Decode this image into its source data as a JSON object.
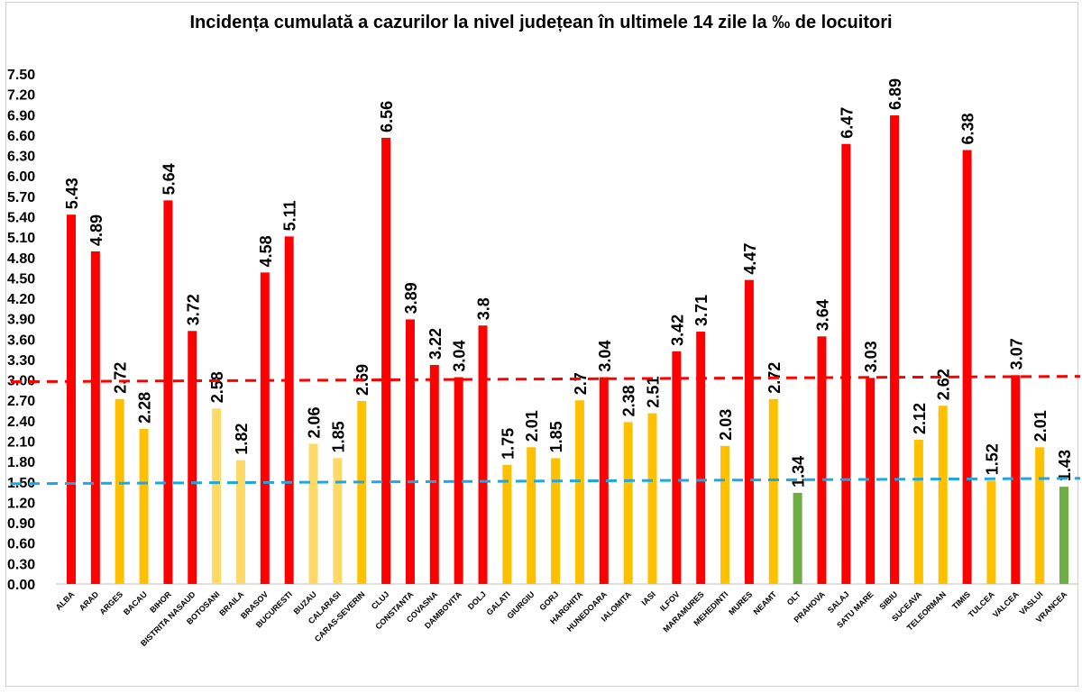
{
  "chart_data": {
    "type": "bar",
    "title": "Incidența cumulată a cazurilor la nivel județean în ultimele 14 zile la ‰ de locuitori",
    "ylim": [
      0,
      7.5
    ],
    "yticks": [
      "0.00",
      "0.30",
      "0.60",
      "0.90",
      "1.20",
      "1.50",
      "1.80",
      "2.10",
      "2.40",
      "2.70",
      "3.00",
      "3.30",
      "3.60",
      "3.90",
      "4.20",
      "4.50",
      "4.80",
      "5.10",
      "5.40",
      "5.70",
      "6.00",
      "6.30",
      "6.60",
      "6.90",
      "7.20",
      "7.50"
    ],
    "grid": false,
    "categories": [
      "ALBA",
      "ARAD",
      "ARGES",
      "BACAU",
      "BIHOR",
      "BISTRITA NASAUD",
      "BOTOSANI",
      "BRAILA",
      "BRASOV",
      "BUCURESTI",
      "BUZAU",
      "CALARASI",
      "CARAS-SEVERIN",
      "CLUJ",
      "CONSTANTA",
      "COVASNA",
      "DAMBOVITA",
      "DOLJ",
      "GALATI",
      "GIURGIU",
      "GORJ",
      "HARGHITA",
      "HUNEDOARA",
      "IALOMITA",
      "IASI",
      "ILFOV",
      "MARAMURES",
      "MEHEDINTI",
      "MURES",
      "NEAMT",
      "OLT",
      "PRAHOVA",
      "SALAJ",
      "SATU MARE",
      "SIBIU",
      "SUCEAVA",
      "TELEORMAN",
      "TIMIS",
      "TULCEA",
      "VALCEA",
      "VASLUI",
      "VRANCEA"
    ],
    "values": [
      5.43,
      4.89,
      2.72,
      2.28,
      5.64,
      3.72,
      2.58,
      1.82,
      4.58,
      5.11,
      2.06,
      1.85,
      2.69,
      6.56,
      3.89,
      3.22,
      3.04,
      3.8,
      1.75,
      2.01,
      1.85,
      2.7,
      3.04,
      2.38,
      2.51,
      3.42,
      3.71,
      2.03,
      4.47,
      2.72,
      1.34,
      3.64,
      6.47,
      3.03,
      6.89,
      2.12,
      2.62,
      6.38,
      1.52,
      3.07,
      2.01,
      1.43
    ],
    "data_labels": [
      "5.43",
      "4.89",
      "2.72",
      "2.28",
      "5.64",
      "3.72",
      "2.58",
      "1.82",
      "4.58",
      "5.11",
      "2.06",
      "1.85",
      "2.69",
      "6.56",
      "3.89",
      "3.22",
      "3.04",
      "3.8",
      "1.75",
      "2.01",
      "1.85",
      "2.7",
      "3.04",
      "2.38",
      "2.51",
      "3.42",
      "3.71",
      "2.03",
      "4.47",
      "2.72",
      "1.34",
      "3.64",
      "6.47",
      "3.03",
      "6.89",
      "2.12",
      "2.62",
      "6.38",
      "1.52",
      "3.07",
      "2.01",
      "1.43"
    ],
    "bar_colors": [
      "#FF0000",
      "#FF0000",
      "#FFC000",
      "#FFC000",
      "#FF0000",
      "#FF0000",
      "#FFD966",
      "#FFD966",
      "#FF0000",
      "#FF0000",
      "#FFD966",
      "#FFD966",
      "#FFC000",
      "#FF0000",
      "#FF0000",
      "#FF0000",
      "#FF0000",
      "#FF0000",
      "#FFC000",
      "#FFC000",
      "#FFC000",
      "#FFC000",
      "#FF0000",
      "#FFC000",
      "#FFC000",
      "#FF0000",
      "#FF0000",
      "#FFC000",
      "#FF0000",
      "#FFC000",
      "#70AD47",
      "#FF0000",
      "#FF0000",
      "#FF0000",
      "#FF0000",
      "#FFC000",
      "#FFC000",
      "#FF0000",
      "#FFC000",
      "#FF0000",
      "#FFC000",
      "#70AD47"
    ],
    "reference_lines": [
      {
        "value": 3.0,
        "color": "#FF0000",
        "style": "dashed"
      },
      {
        "value": 1.5,
        "color": "#1EA7E1",
        "style": "dashed"
      }
    ]
  }
}
